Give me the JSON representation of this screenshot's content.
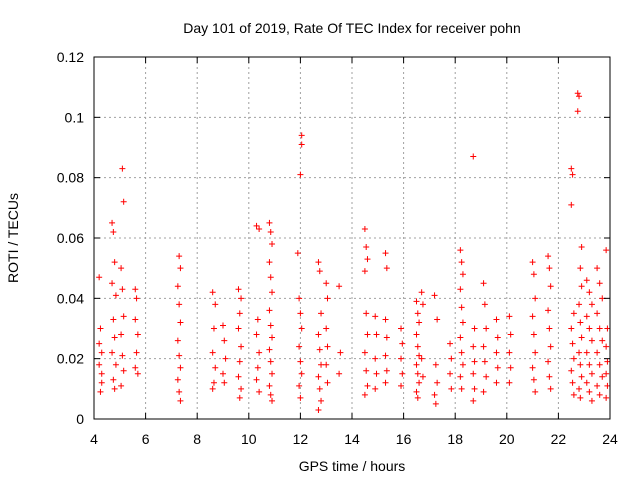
{
  "chart_data": {
    "type": "scatter",
    "title": "Day 101 of 2019, Rate Of TEC Index for receiver pohn",
    "xlabel": "GPS time / hours",
    "ylabel": "ROTI / TECUs",
    "xlim": [
      4,
      24
    ],
    "ylim": [
      0,
      0.12
    ],
    "xticks": [
      4,
      6,
      8,
      10,
      12,
      14,
      16,
      18,
      20,
      22,
      24
    ],
    "yticks": [
      0,
      0.02,
      0.04,
      0.06,
      0.08,
      0.1,
      0.12
    ],
    "xtick_labels": [
      "4",
      "6",
      "8",
      "10",
      "12",
      "14",
      "16",
      "18",
      "20",
      "22",
      "24"
    ],
    "ytick_labels": [
      "0",
      "0.02",
      "0.04",
      "0.06",
      "0.08",
      "0.1",
      "0.12"
    ],
    "grid": true,
    "marker": "+",
    "color": "#ff0000",
    "series": [
      {
        "name": "ROTI",
        "points": [
          [
            4.2,
            0.047
          ],
          [
            4.25,
            0.03
          ],
          [
            4.3,
            0.022
          ],
          [
            4.2,
            0.018
          ],
          [
            4.3,
            0.012
          ],
          [
            4.25,
            0.009
          ],
          [
            4.2,
            0.025
          ],
          [
            4.3,
            0.015
          ],
          [
            4.7,
            0.065
          ],
          [
            4.75,
            0.062
          ],
          [
            4.8,
            0.052
          ],
          [
            4.7,
            0.045
          ],
          [
            4.85,
            0.041
          ],
          [
            4.75,
            0.033
          ],
          [
            4.8,
            0.027
          ],
          [
            4.7,
            0.022
          ],
          [
            4.85,
            0.018
          ],
          [
            4.75,
            0.013
          ],
          [
            4.8,
            0.01
          ],
          [
            5.1,
            0.083
          ],
          [
            5.15,
            0.072
          ],
          [
            5.05,
            0.05
          ],
          [
            5.1,
            0.043
          ],
          [
            5.15,
            0.034
          ],
          [
            5.05,
            0.028
          ],
          [
            5.1,
            0.021
          ],
          [
            5.15,
            0.016
          ],
          [
            5.05,
            0.011
          ],
          [
            5.6,
            0.043
          ],
          [
            5.65,
            0.04
          ],
          [
            5.6,
            0.033
          ],
          [
            5.7,
            0.028
          ],
          [
            5.65,
            0.022
          ],
          [
            5.6,
            0.017
          ],
          [
            5.7,
            0.015
          ],
          [
            7.3,
            0.054
          ],
          [
            7.35,
            0.05
          ],
          [
            7.25,
            0.044
          ],
          [
            7.3,
            0.038
          ],
          [
            7.35,
            0.032
          ],
          [
            7.25,
            0.026
          ],
          [
            7.3,
            0.021
          ],
          [
            7.35,
            0.017
          ],
          [
            7.25,
            0.013
          ],
          [
            7.3,
            0.009
          ],
          [
            7.35,
            0.006
          ],
          [
            8.6,
            0.042
          ],
          [
            8.7,
            0.038
          ],
          [
            8.65,
            0.03
          ],
          [
            8.6,
            0.022
          ],
          [
            8.7,
            0.017
          ],
          [
            8.65,
            0.012
          ],
          [
            8.6,
            0.01
          ],
          [
            9.0,
            0.031
          ],
          [
            9.05,
            0.026
          ],
          [
            9.1,
            0.02
          ],
          [
            9.0,
            0.015
          ],
          [
            9.05,
            0.012
          ],
          [
            9.6,
            0.043
          ],
          [
            9.7,
            0.04
          ],
          [
            9.65,
            0.035
          ],
          [
            9.6,
            0.03
          ],
          [
            9.7,
            0.024
          ],
          [
            9.65,
            0.019
          ],
          [
            9.6,
            0.014
          ],
          [
            9.7,
            0.01
          ],
          [
            9.65,
            0.007
          ],
          [
            10.3,
            0.064
          ],
          [
            10.4,
            0.063
          ],
          [
            10.35,
            0.033
          ],
          [
            10.3,
            0.028
          ],
          [
            10.4,
            0.022
          ],
          [
            10.35,
            0.017
          ],
          [
            10.3,
            0.013
          ],
          [
            10.4,
            0.009
          ],
          [
            10.8,
            0.065
          ],
          [
            10.85,
            0.062
          ],
          [
            10.9,
            0.058
          ],
          [
            10.8,
            0.052
          ],
          [
            10.85,
            0.047
          ],
          [
            10.9,
            0.042
          ],
          [
            10.8,
            0.036
          ],
          [
            10.85,
            0.031
          ],
          [
            10.9,
            0.027
          ],
          [
            10.8,
            0.023
          ],
          [
            10.85,
            0.019
          ],
          [
            10.9,
            0.015
          ],
          [
            10.8,
            0.011
          ],
          [
            10.85,
            0.008
          ],
          [
            10.9,
            0.006
          ],
          [
            11.9,
            0.055
          ],
          [
            12.05,
            0.094
          ],
          [
            12.05,
            0.091
          ],
          [
            12.0,
            0.081
          ],
          [
            11.95,
            0.04
          ],
          [
            12.0,
            0.035
          ],
          [
            12.05,
            0.03
          ],
          [
            11.95,
            0.024
          ],
          [
            12.0,
            0.019
          ],
          [
            12.05,
            0.015
          ],
          [
            11.95,
            0.011
          ],
          [
            12.0,
            0.007
          ],
          [
            12.7,
            0.052
          ],
          [
            12.75,
            0.049
          ],
          [
            12.8,
            0.035
          ],
          [
            12.7,
            0.028
          ],
          [
            12.75,
            0.023
          ],
          [
            12.8,
            0.018
          ],
          [
            12.7,
            0.014
          ],
          [
            12.75,
            0.01
          ],
          [
            12.8,
            0.006
          ],
          [
            12.7,
            0.003
          ],
          [
            13.0,
            0.045
          ],
          [
            13.05,
            0.04
          ],
          [
            13.0,
            0.03
          ],
          [
            13.05,
            0.024
          ],
          [
            13.0,
            0.018
          ],
          [
            13.05,
            0.012
          ],
          [
            13.5,
            0.044
          ],
          [
            13.55,
            0.022
          ],
          [
            13.5,
            0.015
          ],
          [
            14.5,
            0.063
          ],
          [
            14.55,
            0.057
          ],
          [
            14.6,
            0.053
          ],
          [
            14.5,
            0.049
          ],
          [
            14.55,
            0.035
          ],
          [
            14.6,
            0.028
          ],
          [
            14.5,
            0.022
          ],
          [
            14.55,
            0.016
          ],
          [
            14.6,
            0.011
          ],
          [
            14.5,
            0.008
          ],
          [
            14.9,
            0.034
          ],
          [
            14.95,
            0.028
          ],
          [
            14.9,
            0.02
          ],
          [
            14.95,
            0.015
          ],
          [
            14.9,
            0.01
          ],
          [
            15.3,
            0.055
          ],
          [
            15.35,
            0.05
          ],
          [
            15.3,
            0.033
          ],
          [
            15.35,
            0.027
          ],
          [
            15.3,
            0.021
          ],
          [
            15.35,
            0.016
          ],
          [
            15.3,
            0.012
          ],
          [
            15.9,
            0.03
          ],
          [
            15.95,
            0.025
          ],
          [
            15.9,
            0.02
          ],
          [
            15.95,
            0.015
          ],
          [
            15.9,
            0.011
          ],
          [
            16.5,
            0.039
          ],
          [
            16.55,
            0.035
          ],
          [
            16.6,
            0.032
          ],
          [
            16.5,
            0.028
          ],
          [
            16.55,
            0.024
          ],
          [
            16.6,
            0.021
          ],
          [
            16.5,
            0.018
          ],
          [
            16.55,
            0.015
          ],
          [
            16.6,
            0.012
          ],
          [
            16.5,
            0.009
          ],
          [
            16.55,
            0.007
          ],
          [
            16.7,
            0.042
          ],
          [
            16.75,
            0.038
          ],
          [
            16.7,
            0.02
          ],
          [
            16.75,
            0.014
          ],
          [
            17.2,
            0.041
          ],
          [
            17.3,
            0.033
          ],
          [
            17.25,
            0.018
          ],
          [
            17.3,
            0.012
          ],
          [
            17.2,
            0.008
          ],
          [
            17.25,
            0.005
          ],
          [
            17.8,
            0.025
          ],
          [
            17.85,
            0.02
          ],
          [
            17.8,
            0.015
          ],
          [
            17.85,
            0.01
          ],
          [
            18.2,
            0.056
          ],
          [
            18.25,
            0.052
          ],
          [
            18.3,
            0.048
          ],
          [
            18.2,
            0.043
          ],
          [
            18.25,
            0.037
          ],
          [
            18.3,
            0.032
          ],
          [
            18.2,
            0.027
          ],
          [
            18.25,
            0.022
          ],
          [
            18.3,
            0.018
          ],
          [
            18.2,
            0.014
          ],
          [
            18.25,
            0.01
          ],
          [
            18.7,
            0.087
          ],
          [
            18.75,
            0.03
          ],
          [
            18.7,
            0.024
          ],
          [
            18.75,
            0.019
          ],
          [
            18.7,
            0.015
          ],
          [
            18.75,
            0.01
          ],
          [
            18.7,
            0.006
          ],
          [
            19.1,
            0.045
          ],
          [
            19.15,
            0.038
          ],
          [
            19.2,
            0.03
          ],
          [
            19.1,
            0.024
          ],
          [
            19.15,
            0.019
          ],
          [
            19.2,
            0.014
          ],
          [
            19.1,
            0.009
          ],
          [
            19.6,
            0.033
          ],
          [
            19.65,
            0.027
          ],
          [
            19.6,
            0.022
          ],
          [
            19.65,
            0.017
          ],
          [
            19.6,
            0.012
          ],
          [
            20.1,
            0.034
          ],
          [
            20.15,
            0.028
          ],
          [
            20.1,
            0.022
          ],
          [
            20.15,
            0.017
          ],
          [
            20.1,
            0.012
          ],
          [
            21.0,
            0.052
          ],
          [
            21.05,
            0.048
          ],
          [
            21.1,
            0.04
          ],
          [
            21.0,
            0.034
          ],
          [
            21.05,
            0.028
          ],
          [
            21.1,
            0.022
          ],
          [
            21.0,
            0.017
          ],
          [
            21.05,
            0.013
          ],
          [
            21.1,
            0.009
          ],
          [
            21.6,
            0.054
          ],
          [
            21.65,
            0.05
          ],
          [
            21.7,
            0.044
          ],
          [
            21.6,
            0.036
          ],
          [
            21.65,
            0.03
          ],
          [
            21.7,
            0.024
          ],
          [
            21.6,
            0.019
          ],
          [
            21.65,
            0.014
          ],
          [
            21.7,
            0.01
          ],
          [
            22.5,
            0.083
          ],
          [
            22.55,
            0.081
          ],
          [
            22.5,
            0.071
          ],
          [
            22.6,
            0.035
          ],
          [
            22.5,
            0.03
          ],
          [
            22.55,
            0.025
          ],
          [
            22.6,
            0.02
          ],
          [
            22.5,
            0.016
          ],
          [
            22.55,
            0.012
          ],
          [
            22.6,
            0.008
          ],
          [
            22.75,
            0.108
          ],
          [
            22.8,
            0.107
          ],
          [
            22.75,
            0.102
          ],
          [
            22.9,
            0.057
          ],
          [
            22.85,
            0.05
          ],
          [
            22.9,
            0.044
          ],
          [
            22.8,
            0.038
          ],
          [
            22.85,
            0.032
          ],
          [
            22.9,
            0.027
          ],
          [
            22.8,
            0.022
          ],
          [
            22.85,
            0.018
          ],
          [
            22.9,
            0.014
          ],
          [
            22.8,
            0.01
          ],
          [
            22.85,
            0.007
          ],
          [
            23.1,
            0.046
          ],
          [
            23.2,
            0.042
          ],
          [
            23.3,
            0.038
          ],
          [
            23.1,
            0.034
          ],
          [
            23.2,
            0.03
          ],
          [
            23.3,
            0.026
          ],
          [
            23.1,
            0.022
          ],
          [
            23.2,
            0.018
          ],
          [
            23.3,
            0.015
          ],
          [
            23.1,
            0.012
          ],
          [
            23.2,
            0.009
          ],
          [
            23.3,
            0.006
          ],
          [
            23.5,
            0.05
          ],
          [
            23.6,
            0.045
          ],
          [
            23.7,
            0.04
          ],
          [
            23.5,
            0.035
          ],
          [
            23.6,
            0.03
          ],
          [
            23.7,
            0.026
          ],
          [
            23.5,
            0.022
          ],
          [
            23.6,
            0.018
          ],
          [
            23.7,
            0.014
          ],
          [
            23.5,
            0.011
          ],
          [
            23.6,
            0.008
          ],
          [
            23.85,
            0.056
          ],
          [
            23.9,
            0.03
          ],
          [
            23.85,
            0.024
          ],
          [
            23.9,
            0.019
          ],
          [
            23.85,
            0.015
          ],
          [
            23.9,
            0.011
          ],
          [
            23.85,
            0.007
          ]
        ]
      }
    ]
  }
}
